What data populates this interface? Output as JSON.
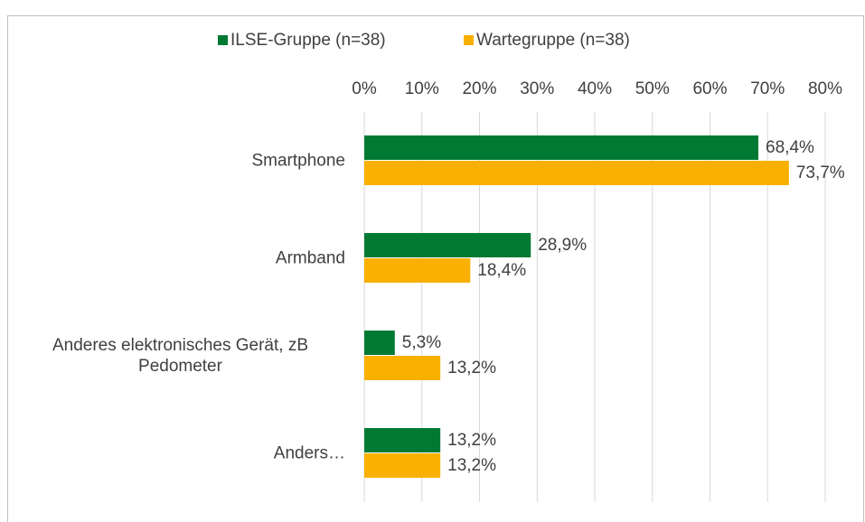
{
  "chart_data": {
    "type": "bar",
    "orientation": "horizontal",
    "categories": [
      "Smartphone",
      "Armband",
      "Anderes elektronisches Gerät, zB Pedometer",
      "Anders…"
    ],
    "series": [
      {
        "name": "ILSE-Gruppe (n=38)",
        "color": "#007a33",
        "values": [
          68.4,
          28.9,
          5.3,
          13.2
        ],
        "value_labels": [
          "68,4%",
          "28,9%",
          "5,3%",
          "13,2%"
        ]
      },
      {
        "name": "Wartegruppe (n=38)",
        "color": "#f9b000",
        "values": [
          73.7,
          18.4,
          13.2,
          13.2
        ],
        "value_labels": [
          "73,7%",
          "18,4%",
          "13,2%",
          "13,2%"
        ]
      }
    ],
    "xlim": [
      0,
      80
    ],
    "xticks": [
      {
        "value": 0,
        "label": "0%"
      },
      {
        "value": 10,
        "label": "10%"
      },
      {
        "value": 20,
        "label": "20%"
      },
      {
        "value": 30,
        "label": "30%"
      },
      {
        "value": 40,
        "label": "40%"
      },
      {
        "value": 50,
        "label": "50%"
      },
      {
        "value": 60,
        "label": "60%"
      },
      {
        "value": 70,
        "label": "70%"
      },
      {
        "value": 80,
        "label": "80%"
      }
    ],
    "grid": true,
    "legend": "top"
  }
}
